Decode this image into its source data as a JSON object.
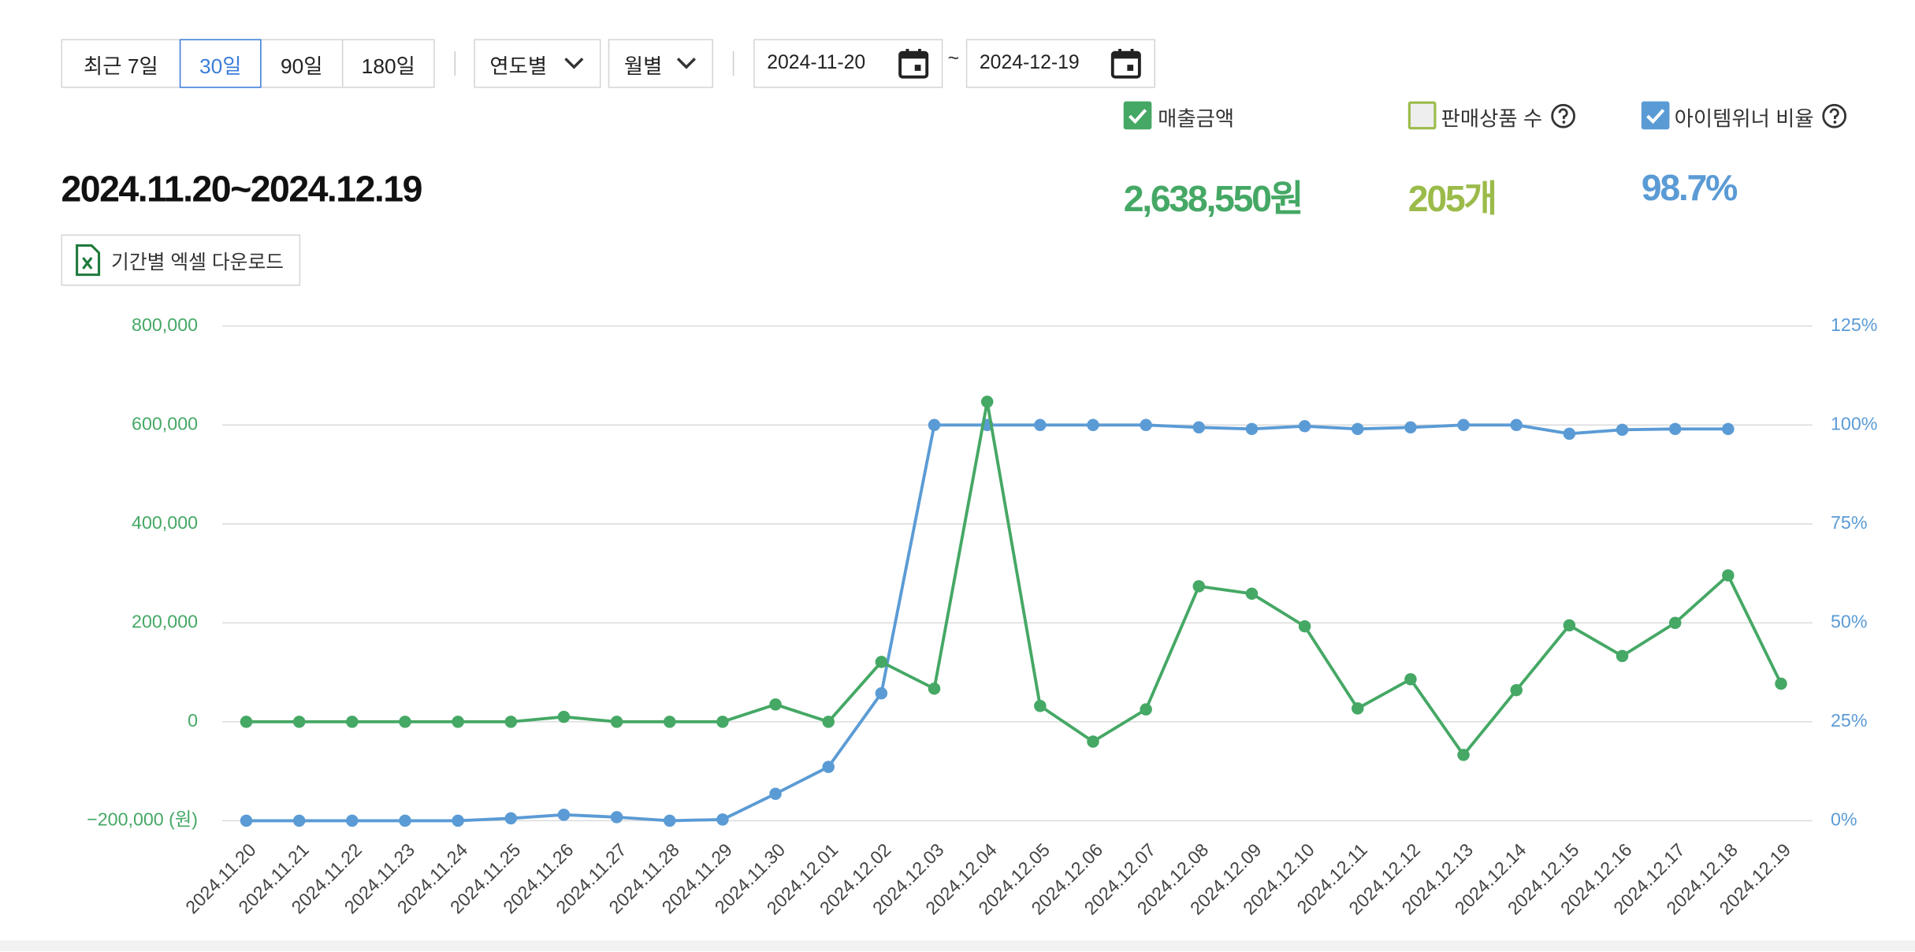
{
  "controls": {
    "periods": [
      "최근 7일",
      "30일",
      "90일",
      "180일"
    ],
    "dropdowns": [
      "연도별",
      "월별"
    ],
    "date_range": {
      "start": "2024-11-20",
      "separator": "~",
      "end": "2024-12-19"
    }
  },
  "period_title": "2024.11.20~2024.12.19",
  "excel_button": "기간별 엑셀 다운로드",
  "metrics": [
    {
      "label": "매출금액",
      "value": "2,638,550원",
      "checked": true,
      "color": "#45a865"
    },
    {
      "label": "판매상품 수",
      "value": "205개",
      "checked": false,
      "color": "#9bbb4a"
    },
    {
      "label": "아이템위너 비율",
      "value": "98.7%",
      "checked": true,
      "color": "#5b9bd5"
    }
  ],
  "chart_data": {
    "type": "line",
    "categories": [
      "2024.11.20",
      "2024.11.21",
      "2024.11.22",
      "2024.11.23",
      "2024.11.24",
      "2024.11.25",
      "2024.11.26",
      "2024.11.27",
      "2024.11.28",
      "2024.11.29",
      "2024.11.30",
      "2024.12.01",
      "2024.12.02",
      "2024.12.03",
      "2024.12.04",
      "2024.12.05",
      "2024.12.06",
      "2024.12.07",
      "2024.12.08",
      "2024.12.09",
      "2024.12.10",
      "2024.12.11",
      "2024.12.12",
      "2024.12.13",
      "2024.12.14",
      "2024.12.15",
      "2024.12.16",
      "2024.12.17",
      "2024.12.18",
      "2024.12.19"
    ],
    "series": [
      {
        "color": "#5b9bd5",
        "axis": "y2",
        "values": [
          0,
          0,
          0,
          0,
          0,
          0.6,
          1.5,
          0.9,
          0,
          0.3,
          6.8,
          13.6,
          32.2,
          100,
          100,
          100,
          100,
          100,
          99.4,
          99,
          99.7,
          99,
          99.4,
          100,
          100,
          97.8,
          98.8,
          99,
          99,
          null
        ]
      },
      {
        "color": "#45a865",
        "values": [
          0,
          0,
          0,
          0,
          0,
          0,
          10000,
          0,
          0,
          0,
          35000,
          0,
          121000,
          67000,
          647000,
          32000,
          -40000,
          25000,
          274000,
          259000,
          193000,
          27000,
          86000,
          -67000,
          64000,
          195000,
          133000,
          200000,
          296000,
          77000
        ]
      }
    ],
    "ylim": [
      -200000,
      800000
    ],
    "yticks": [
      {
        "value": -200000,
        "label": "−200,000 (원)"
      },
      {
        "value": 0,
        "label": "0"
      },
      {
        "value": 200000,
        "label": "200,000"
      },
      {
        "value": 400000,
        "label": "400,000"
      },
      {
        "value": 600000,
        "label": "600,000"
      },
      {
        "value": 800000,
        "label": "800,000"
      }
    ],
    "y2lim": [
      0,
      125
    ],
    "y2ticks": [
      {
        "value": 0,
        "label": "0%"
      },
      {
        "value": 25,
        "label": "25%"
      },
      {
        "value": 50,
        "label": "50%"
      },
      {
        "value": 75,
        "label": "75%"
      },
      {
        "value": 100,
        "label": "100%"
      },
      {
        "value": 125,
        "label": "125%"
      }
    ],
    "grid": true,
    "ycolor": "#45a865",
    "y2color": "#5b9bd5"
  }
}
